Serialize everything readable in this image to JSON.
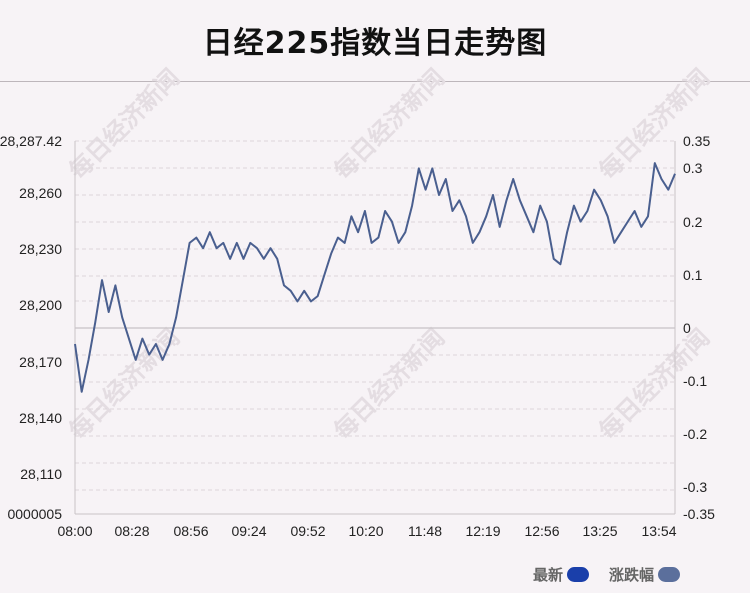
{
  "title": "日经225指数当日走势图",
  "watermark": "每日经济新闻",
  "legend": [
    {
      "label": "最新",
      "color": "#1a3faa"
    },
    {
      "label": "涨跌幅",
      "color": "#5b6f9c"
    }
  ],
  "colors": {
    "line": "#4a5f8f",
    "grid": "#dcd6da",
    "zero_line": "#c7c2c6",
    "axis": "#c9c3c7",
    "text": "#222222"
  },
  "chart_data": {
    "type": "line",
    "title": "日经225指数当日走势图",
    "xlabel": "",
    "ylabel": "",
    "x_ticks": [
      "08:00",
      "08:28",
      "08:56",
      "09:24",
      "09:52",
      "10:20",
      "11:48",
      "12:19",
      "12:56",
      "13:25",
      "13:54"
    ],
    "y_left_ticks": [
      "28,287.42",
      "28,260",
      "28,230",
      "28,200",
      "28,170",
      "28,140",
      "28,110",
      "0000005"
    ],
    "y_right_ticks": [
      "0.35",
      "0.3",
      "0.2",
      "0.1",
      "0",
      "-0.1",
      "-0.2",
      "-0.3",
      "-0.35"
    ],
    "ylim_right": [
      -0.35,
      0.35
    ],
    "grid": true,
    "series": [
      {
        "name": "涨跌幅",
        "values": [
          -0.03,
          -0.12,
          -0.06,
          0.01,
          0.09,
          0.03,
          0.08,
          0.02,
          -0.02,
          -0.06,
          -0.02,
          -0.05,
          -0.03,
          -0.06,
          -0.03,
          0.02,
          0.09,
          0.16,
          0.17,
          0.15,
          0.18,
          0.15,
          0.16,
          0.13,
          0.16,
          0.13,
          0.16,
          0.15,
          0.13,
          0.15,
          0.13,
          0.08,
          0.07,
          0.05,
          0.07,
          0.05,
          0.06,
          0.1,
          0.14,
          0.17,
          0.16,
          0.21,
          0.18,
          0.22,
          0.16,
          0.17,
          0.22,
          0.2,
          0.16,
          0.18,
          0.23,
          0.3,
          0.26,
          0.3,
          0.25,
          0.28,
          0.22,
          0.24,
          0.21,
          0.16,
          0.18,
          0.21,
          0.25,
          0.19,
          0.24,
          0.28,
          0.24,
          0.21,
          0.18,
          0.23,
          0.2,
          0.13,
          0.12,
          0.18,
          0.23,
          0.2,
          0.22,
          0.26,
          0.24,
          0.21,
          0.16,
          0.18,
          0.2,
          0.22,
          0.19,
          0.21,
          0.31,
          0.28,
          0.26,
          0.29
        ]
      }
    ]
  }
}
